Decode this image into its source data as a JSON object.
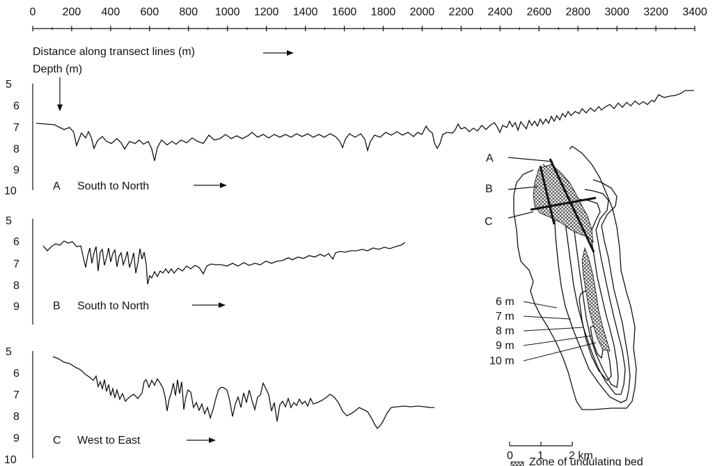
{
  "top_axis": {
    "ticks": [
      "0",
      "200",
      "400",
      "600",
      "800",
      "1000",
      "1200",
      "1400",
      "1600",
      "1800",
      "2000",
      "2200",
      "2400",
      "2600",
      "2800",
      "3000",
      "3200",
      "3400"
    ],
    "label": "Distance along transect lines (m)"
  },
  "depth_label": "Depth (m)",
  "panels": [
    {
      "id": "A",
      "caption": "South to North",
      "depth_ticks": [
        "5",
        "6",
        "7",
        "8",
        "9",
        "10"
      ]
    },
    {
      "id": "B",
      "caption": "South to North",
      "depth_ticks": [
        "5",
        "6",
        "7",
        "8",
        "9"
      ]
    },
    {
      "id": "C",
      "caption": "West to East",
      "depth_ticks": [
        "5",
        "6",
        "7",
        "8",
        "9",
        "10"
      ]
    }
  ],
  "map": {
    "transects": [
      "A",
      "B",
      "C"
    ],
    "contours": [
      "6 m",
      "7 m",
      "8 m",
      "9 m",
      "10 m"
    ],
    "scale_ticks": [
      "0",
      "1",
      "2 km"
    ],
    "legend": "Zone of undulating bed"
  }
}
